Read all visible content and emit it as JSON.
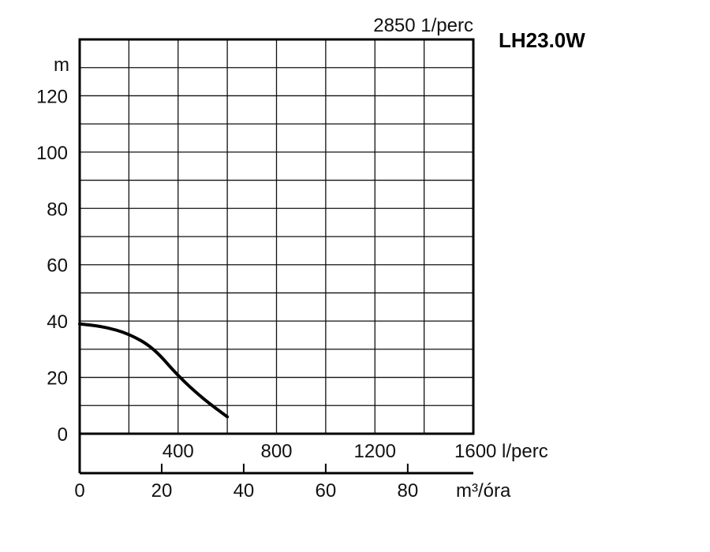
{
  "chart_data": {
    "type": "line",
    "model": "LH23.0W",
    "speed_label": "2850 1/perc",
    "ylabel": "m",
    "ylim": [
      0,
      140
    ],
    "y_ticks": [
      {
        "v": 0,
        "label": "0"
      },
      {
        "v": 20,
        "label": "20"
      },
      {
        "v": 40,
        "label": "40"
      },
      {
        "v": 60,
        "label": "60"
      },
      {
        "v": 80,
        "label": "80"
      },
      {
        "v": 100,
        "label": "100"
      },
      {
        "v": 120,
        "label": "120"
      }
    ],
    "xlim_lpm": [
      0,
      1600
    ],
    "x_ticks_lpm": [
      {
        "v": 400,
        "label": "400"
      },
      {
        "v": 800,
        "label": "800"
      },
      {
        "v": 1200,
        "label": "1200"
      },
      {
        "v": 1600,
        "label": "1600 l/perc"
      }
    ],
    "xlim_m3h": [
      0,
      96
    ],
    "x_ticks_m3h": [
      {
        "v": 0,
        "label": "0"
      },
      {
        "v": 20,
        "label": "20"
      },
      {
        "v": 40,
        "label": "40"
      },
      {
        "v": 60,
        "label": "60"
      },
      {
        "v": 80,
        "label": "80"
      }
    ],
    "x2label": "m³/óra",
    "grid": true,
    "series": [
      {
        "points": [
          {
            "x": 0,
            "y": 39
          },
          {
            "x": 100,
            "y": 38
          },
          {
            "x": 200,
            "y": 35.5
          },
          {
            "x": 300,
            "y": 30.5
          },
          {
            "x": 400,
            "y": 20.5
          },
          {
            "x": 500,
            "y": 12.5
          },
          {
            "x": 600,
            "y": 6
          }
        ]
      }
    ]
  }
}
